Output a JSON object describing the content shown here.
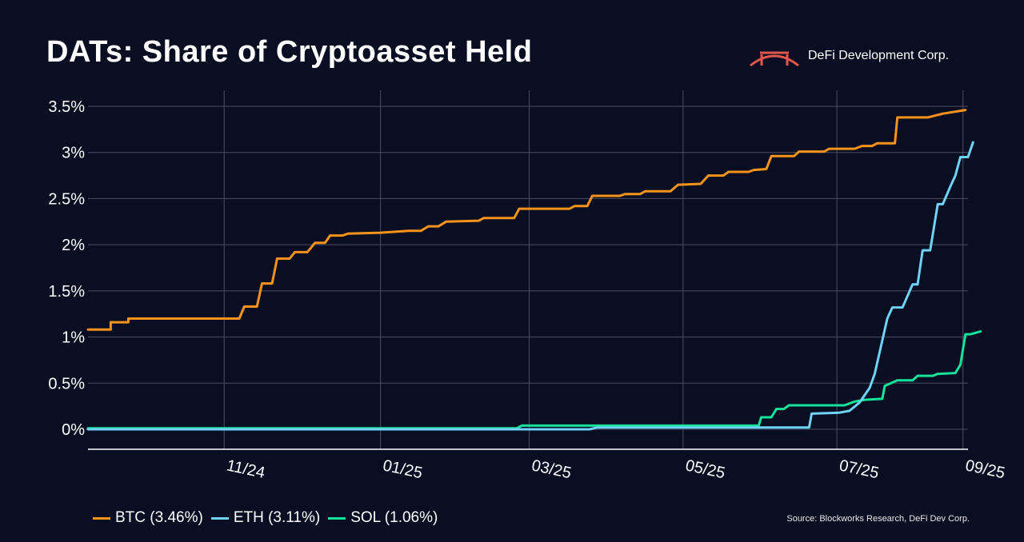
{
  "header": {
    "title": "DATs: Share of Cryptoasset Held",
    "brand_name": "DeFi Development Corp."
  },
  "footer": {
    "source": "Source: Blockworks Research, DeFi Dev Corp."
  },
  "colors": {
    "background": "#0a0e23",
    "btc": "#f7931a",
    "eth": "#6fd3f7",
    "sol": "#14e39a",
    "logo": "#e2574c"
  },
  "chart_data": {
    "type": "line",
    "title": "DATs: Share of Cryptoasset Held",
    "xlabel": "",
    "ylabel": "",
    "ylim": [
      0,
      3.5
    ],
    "y_ticks": [
      0,
      0.5,
      1,
      1.5,
      2,
      2.5,
      3,
      3.5
    ],
    "y_tick_labels": [
      "0%",
      "0.5%",
      "1%",
      "1.5%",
      "2%",
      "2.5%",
      "3%",
      "3.5%"
    ],
    "x_domain": [
      "2024-10-01",
      "2025-09-15"
    ],
    "x_ticks": [
      {
        "date": "2024-11-24",
        "label": "11/24"
      },
      {
        "date": "2025-01-25",
        "label": "01/25"
      },
      {
        "date": "2025-03-25",
        "label": "03/25"
      },
      {
        "date": "2025-05-25",
        "label": "05/25"
      },
      {
        "date": "2025-07-25",
        "label": "07/25"
      },
      {
        "date": "2025-09-13",
        "label": "09/25"
      }
    ],
    "grid": true,
    "legend_position": "bottom-left",
    "series": [
      {
        "name": "BTC",
        "legend": "BTC (3.46%)",
        "points": [
          [
            "2024-10-01",
            1.08
          ],
          [
            "2024-10-10",
            1.08
          ],
          [
            "2024-10-10",
            1.16
          ],
          [
            "2024-10-17",
            1.16
          ],
          [
            "2024-10-17",
            1.2
          ],
          [
            "2024-11-30",
            1.2
          ],
          [
            "2024-12-02",
            1.33
          ],
          [
            "2024-12-07",
            1.33
          ],
          [
            "2024-12-09",
            1.58
          ],
          [
            "2024-12-13",
            1.58
          ],
          [
            "2024-12-15",
            1.85
          ],
          [
            "2024-12-20",
            1.85
          ],
          [
            "2024-12-22",
            1.92
          ],
          [
            "2024-12-27",
            1.92
          ],
          [
            "2024-12-30",
            2.02
          ],
          [
            "2025-01-03",
            2.02
          ],
          [
            "2025-01-05",
            2.1
          ],
          [
            "2025-01-10",
            2.1
          ],
          [
            "2025-01-12",
            2.12
          ],
          [
            "2025-01-25",
            2.13
          ],
          [
            "2025-02-05",
            2.15
          ],
          [
            "2025-02-10",
            2.15
          ],
          [
            "2025-02-13",
            2.2
          ],
          [
            "2025-02-17",
            2.2
          ],
          [
            "2025-02-20",
            2.25
          ],
          [
            "2025-03-05",
            2.26
          ],
          [
            "2025-03-07",
            2.29
          ],
          [
            "2025-03-19",
            2.29
          ],
          [
            "2025-03-21",
            2.39
          ],
          [
            "2025-04-10",
            2.39
          ],
          [
            "2025-04-12",
            2.42
          ],
          [
            "2025-04-17",
            2.42
          ],
          [
            "2025-04-19",
            2.53
          ],
          [
            "2025-04-30",
            2.53
          ],
          [
            "2025-05-02",
            2.55
          ],
          [
            "2025-05-08",
            2.55
          ],
          [
            "2025-05-10",
            2.58
          ],
          [
            "2025-05-20",
            2.58
          ],
          [
            "2025-05-23",
            2.65
          ],
          [
            "2025-06-01",
            2.66
          ],
          [
            "2025-06-04",
            2.75
          ],
          [
            "2025-06-10",
            2.75
          ],
          [
            "2025-06-12",
            2.79
          ],
          [
            "2025-06-20",
            2.79
          ],
          [
            "2025-06-22",
            2.81
          ],
          [
            "2025-06-27",
            2.82
          ],
          [
            "2025-06-29",
            2.96
          ],
          [
            "2025-07-08",
            2.96
          ],
          [
            "2025-07-10",
            3.01
          ],
          [
            "2025-07-20",
            3.01
          ],
          [
            "2025-07-22",
            3.04
          ],
          [
            "2025-08-01",
            3.04
          ],
          [
            "2025-08-04",
            3.07
          ],
          [
            "2025-08-08",
            3.07
          ],
          [
            "2025-08-10",
            3.1
          ],
          [
            "2025-08-17",
            3.1
          ],
          [
            "2025-08-18",
            3.38
          ],
          [
            "2025-08-30",
            3.38
          ],
          [
            "2025-09-05",
            3.42
          ],
          [
            "2025-09-14",
            3.46
          ]
        ]
      },
      {
        "name": "ETH",
        "legend": "ETH (3.11%)",
        "points": [
          [
            "2024-10-01",
            0.0
          ],
          [
            "2025-04-18",
            0.0
          ],
          [
            "2025-04-21",
            0.02
          ],
          [
            "2025-07-14",
            0.02
          ],
          [
            "2025-07-15",
            0.17
          ],
          [
            "2025-07-26",
            0.18
          ],
          [
            "2025-07-30",
            0.2
          ],
          [
            "2025-08-03",
            0.29
          ],
          [
            "2025-08-07",
            0.45
          ],
          [
            "2025-08-09",
            0.6
          ],
          [
            "2025-08-12",
            0.96
          ],
          [
            "2025-08-14",
            1.2
          ],
          [
            "2025-08-16",
            1.32
          ],
          [
            "2025-08-20",
            1.32
          ],
          [
            "2025-08-24",
            1.57
          ],
          [
            "2025-08-26",
            1.57
          ],
          [
            "2025-08-28",
            1.94
          ],
          [
            "2025-08-31",
            1.94
          ],
          [
            "2025-09-03",
            2.44
          ],
          [
            "2025-09-05",
            2.44
          ],
          [
            "2025-09-08",
            2.63
          ],
          [
            "2025-09-10",
            2.75
          ],
          [
            "2025-09-12",
            2.95
          ],
          [
            "2025-09-15",
            2.95
          ],
          [
            "2025-09-17",
            3.11
          ]
        ]
      },
      {
        "name": "SOL",
        "legend": "SOL (1.06%)",
        "points": [
          [
            "2024-10-01",
            0.01
          ],
          [
            "2025-03-20",
            0.01
          ],
          [
            "2025-03-22",
            0.04
          ],
          [
            "2025-06-24",
            0.04
          ],
          [
            "2025-06-25",
            0.13
          ],
          [
            "2025-06-29",
            0.13
          ],
          [
            "2025-07-01",
            0.22
          ],
          [
            "2025-07-04",
            0.22
          ],
          [
            "2025-07-06",
            0.26
          ],
          [
            "2025-07-28",
            0.26
          ],
          [
            "2025-08-01",
            0.3
          ],
          [
            "2025-08-05",
            0.32
          ],
          [
            "2025-08-12",
            0.33
          ],
          [
            "2025-08-13",
            0.47
          ],
          [
            "2025-08-18",
            0.53
          ],
          [
            "2025-08-24",
            0.53
          ],
          [
            "2025-08-26",
            0.58
          ],
          [
            "2025-09-01",
            0.58
          ],
          [
            "2025-09-03",
            0.6
          ],
          [
            "2025-09-10",
            0.61
          ],
          [
            "2025-09-12",
            0.7
          ],
          [
            "2025-09-14",
            1.03
          ],
          [
            "2025-09-16",
            1.03
          ],
          [
            "2025-09-20",
            1.06
          ]
        ]
      }
    ]
  }
}
